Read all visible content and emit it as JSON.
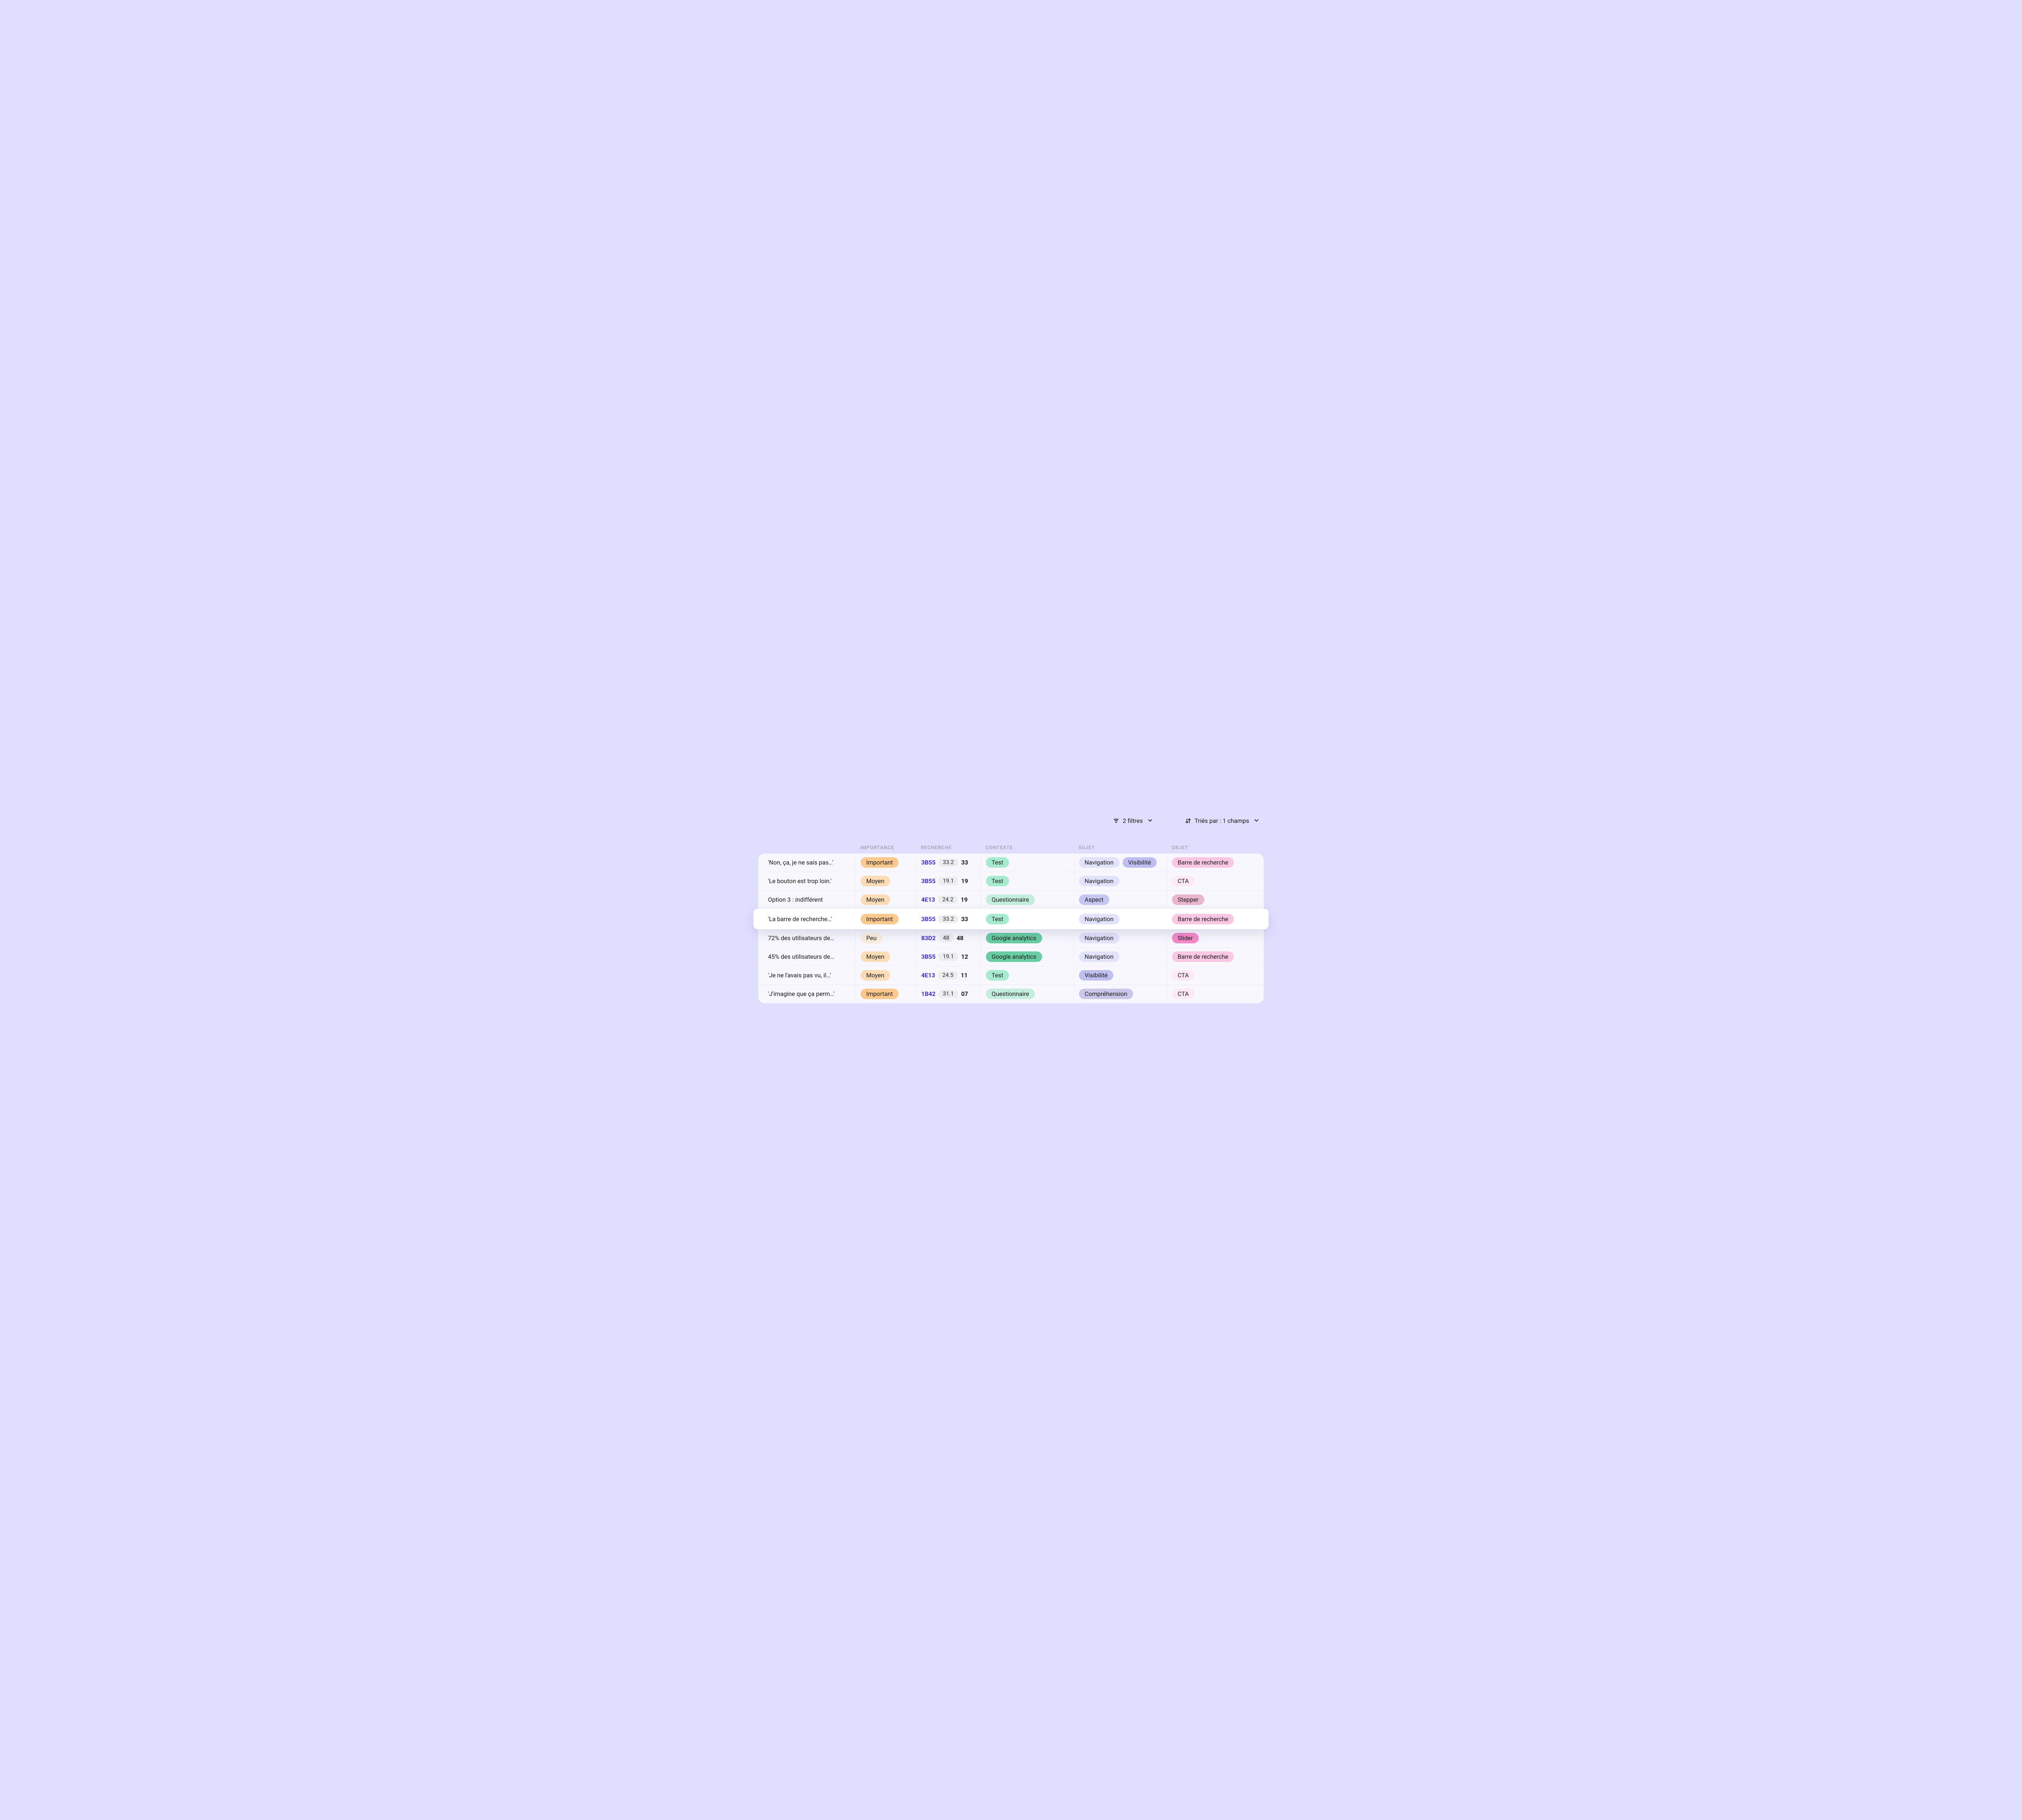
{
  "toolbar": {
    "filters_label": "2 filtres",
    "sort_label": "Triés par : 1 champs"
  },
  "colors": {
    "page_bg": "#e0deff",
    "table_bg": "#f7f7fd",
    "row_border": "#eceaf6",
    "header_text": "#9aa0aa",
    "code_text": "#3a2eea",
    "pill_bg": "#ecedef",
    "shadow": "rgba(50,40,120,0.14)"
  },
  "columns": {
    "importance": "IMPORTANCE",
    "recherche": "RECHERCHE",
    "contexte": "CONTEXTE",
    "sujet": "SUJET",
    "objet": "OBJET"
  },
  "badge_styles": {
    "important": {
      "bg": "#fbc98d",
      "fg": "#1a1a1a"
    },
    "moyen": {
      "bg": "#fcdcb7",
      "fg": "#1a1a1a"
    },
    "peu": {
      "bg": "#fbeedd",
      "fg": "#1a1a1a"
    },
    "test": {
      "bg": "#a7ebcf",
      "fg": "#1a1a1a"
    },
    "questionnaire": {
      "bg": "#c3eedd",
      "fg": "#1a1a1a"
    },
    "google": {
      "bg": "#69cda3",
      "fg": "#1a1a1a"
    },
    "navigation": {
      "bg": "#e1e2fb",
      "fg": "#1a1a1a"
    },
    "visibilite": {
      "bg": "#bfbef0",
      "fg": "#1a1a1a"
    },
    "aspect": {
      "bg": "#c6c6f3",
      "fg": "#1a1a1a"
    },
    "comprehension": {
      "bg": "#c9c8ea",
      "fg": "#1a1a1a"
    },
    "barre": {
      "bg": "#fac7e2",
      "fg": "#1a1a1a"
    },
    "cta": {
      "bg": "#fde9f3",
      "fg": "#1a1a1a"
    },
    "stepper": {
      "bg": "#e9b6ce",
      "fg": "#1a1a1a"
    },
    "slider": {
      "bg": "#f58ac8",
      "fg": "#1a1a1a"
    }
  },
  "rows": [
    {
      "title": "'Non, ça, je ne sais pas…'",
      "importance_label": "Important",
      "importance_style": "important",
      "code": "3B55",
      "metric": "33.2",
      "rank": "33",
      "contexte_label": "Test",
      "contexte_style": "test",
      "sujets": [
        {
          "label": "Navigation",
          "style": "navigation"
        },
        {
          "label": "Visibilité",
          "style": "visibilite"
        }
      ],
      "objets": [
        {
          "label": "Barre de recherche",
          "style": "barre"
        }
      ],
      "elevated": false
    },
    {
      "title": "'Le bouton est trop loin.'",
      "importance_label": "Moyen",
      "importance_style": "moyen",
      "code": "3B55",
      "metric": "19.1",
      "rank": "19",
      "contexte_label": "Test",
      "contexte_style": "test",
      "sujets": [
        {
          "label": "Navigation",
          "style": "navigation"
        }
      ],
      "objets": [
        {
          "label": "CTA",
          "style": "cta"
        }
      ],
      "elevated": false
    },
    {
      "title": "Option 3 : indifférent",
      "importance_label": "Moyen",
      "importance_style": "moyen",
      "code": "4E13",
      "metric": "24.2",
      "rank": "19",
      "contexte_label": "Questionnaire",
      "contexte_style": "questionnaire",
      "sujets": [
        {
          "label": "Aspect",
          "style": "aspect"
        }
      ],
      "objets": [
        {
          "label": "Stepper",
          "style": "stepper"
        }
      ],
      "elevated": false
    },
    {
      "title": "'La barre de recherche…'",
      "importance_label": "Important",
      "importance_style": "important",
      "code": "3B55",
      "metric": "33.2",
      "rank": "33",
      "contexte_label": "Test",
      "contexte_style": "test",
      "sujets": [
        {
          "label": "Navigation",
          "style": "navigation"
        }
      ],
      "objets": [
        {
          "label": "Barre de recherche",
          "style": "barre"
        }
      ],
      "elevated": true
    },
    {
      "title": "72% des utilisateurs de…",
      "importance_label": "Peu",
      "importance_style": "peu",
      "code": "83D2",
      "metric": "48",
      "rank": "48",
      "contexte_label": "Google analytics",
      "contexte_style": "google",
      "sujets": [
        {
          "label": "Navigation",
          "style": "navigation"
        }
      ],
      "objets": [
        {
          "label": "Slider",
          "style": "slider"
        }
      ],
      "elevated": false
    },
    {
      "title": "45% des utilisateurs de…",
      "importance_label": "Moyen",
      "importance_style": "moyen",
      "code": "3B55",
      "metric": "19.1",
      "rank": "12",
      "contexte_label": "Google analytics",
      "contexte_style": "google",
      "sujets": [
        {
          "label": "Navigation",
          "style": "navigation"
        }
      ],
      "objets": [
        {
          "label": "Barre de recherche",
          "style": "barre"
        }
      ],
      "elevated": false
    },
    {
      "title": "'Je ne l'avais pas vu, il…'",
      "importance_label": "Moyen",
      "importance_style": "moyen",
      "code": "4E13",
      "metric": "24.5",
      "rank": "11",
      "contexte_label": "Test",
      "contexte_style": "test",
      "sujets": [
        {
          "label": "Visibilité",
          "style": "visibilite"
        }
      ],
      "objets": [
        {
          "label": "CTA",
          "style": "cta"
        }
      ],
      "elevated": false
    },
    {
      "title": "'J'imagine que ça perm…'",
      "importance_label": "Important",
      "importance_style": "important",
      "code": "1B42",
      "metric": "31.1",
      "rank": "07",
      "contexte_label": "Questionnaire",
      "contexte_style": "questionnaire",
      "sujets": [
        {
          "label": "Compréhension",
          "style": "comprehension"
        }
      ],
      "objets": [
        {
          "label": "CTA",
          "style": "cta"
        }
      ],
      "elevated": false
    }
  ]
}
